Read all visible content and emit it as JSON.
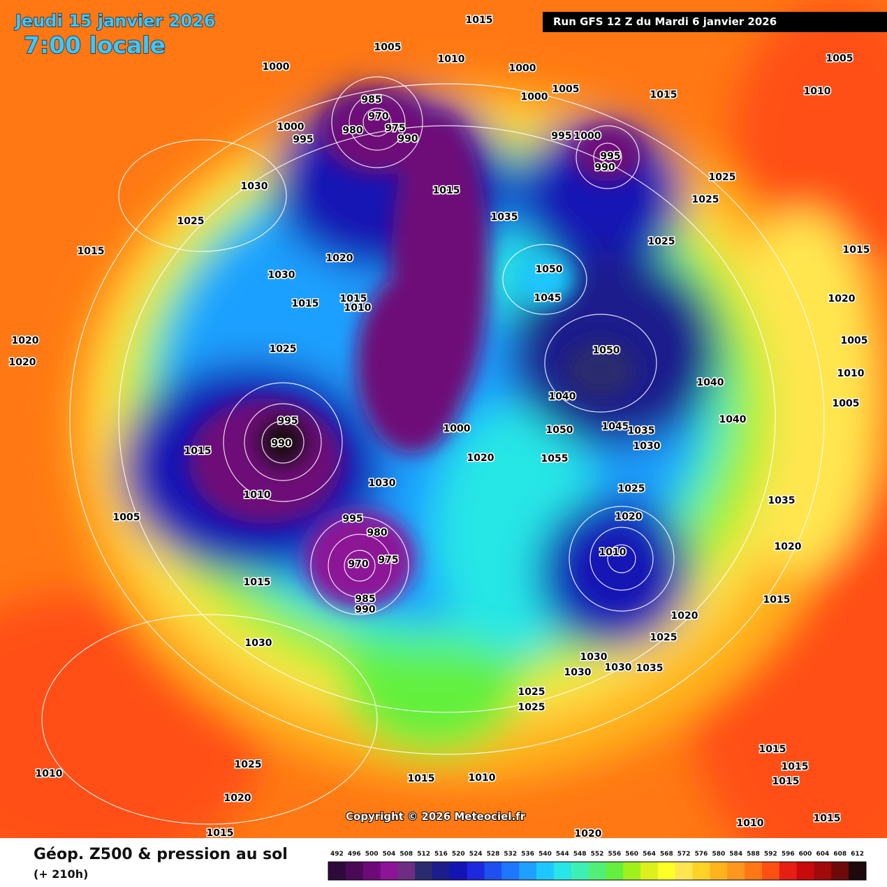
{
  "header": {
    "date": "Jeudi 15 janvier 2026",
    "time": "7:00 locale",
    "run": "Run GFS 12 Z du Mardi 6 janvier 2026"
  },
  "copyright": "Copyright © 2026 Meteociel.fr",
  "legend": {
    "title": "Géop. Z500 & pression au sol",
    "lead": "(+ 210h)"
  },
  "colorbar": {
    "ticks": [
      492,
      496,
      500,
      504,
      508,
      512,
      516,
      520,
      524,
      528,
      532,
      536,
      540,
      544,
      548,
      552,
      556,
      560,
      564,
      568,
      572,
      576,
      580,
      584,
      588,
      592,
      596,
      600,
      604,
      608,
      612
    ],
    "colors": [
      "#2e0a3c",
      "#4b0a55",
      "#6e0a78",
      "#8c1496",
      "#6e2c82",
      "#2a2a6e",
      "#1c1c8c",
      "#1414b4",
      "#1e28dc",
      "#1e50f0",
      "#1e78ff",
      "#1ea0ff",
      "#1ec8ff",
      "#28e6e6",
      "#3cf0b4",
      "#50f078",
      "#64f03c",
      "#a0f01e",
      "#dcf01e",
      "#ffff28",
      "#ffe650",
      "#ffd228",
      "#ffb41e",
      "#ff961e",
      "#ff7814",
      "#ff5014",
      "#e61e14",
      "#c80a0a",
      "#a00a0a",
      "#6e0a0a",
      "#1e0a0a"
    ]
  },
  "pressure_labels": [
    1015,
    1005,
    1010,
    1000,
    1000,
    1005,
    1000,
    1015,
    1005,
    1010,
    985,
    970,
    975,
    980,
    990,
    1000,
    995,
    995,
    1000,
    995,
    990,
    1030,
    1015,
    1025,
    1025,
    1035,
    1025,
    1015,
    1020,
    1030,
    1050,
    1045,
    1025,
    1015,
    1020,
    1015,
    1015,
    1010,
    1020,
    1020,
    1025,
    1050,
    1005,
    1010,
    1040,
    1005,
    1040,
    1040,
    995,
    990,
    1015,
    1000,
    1050,
    1045,
    1035,
    1030,
    1020,
    1055,
    1030,
    1010,
    1025,
    1035,
    1005,
    1020,
    1010,
    1020,
    980,
    995,
    970,
    975,
    985,
    990,
    1015,
    1015,
    1020,
    1025,
    1030,
    1030,
    1030,
    1030,
    1035,
    1025,
    1025,
    1015,
    1015,
    1015,
    1025,
    1010,
    1020,
    1015,
    1010,
    1010,
    1015,
    1015,
    1020
  ]
}
